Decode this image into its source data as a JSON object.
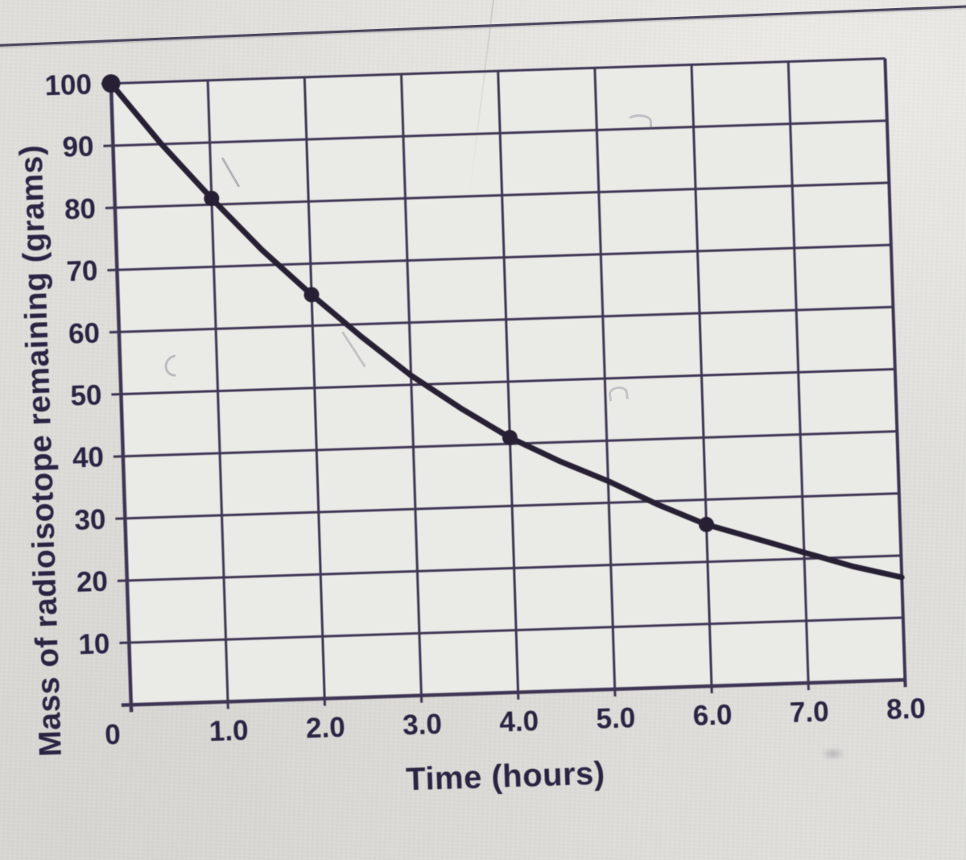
{
  "chart_data": {
    "type": "line",
    "title": "",
    "xlabel": "Time (hours)",
    "ylabel": "Mass of radioisotope remaining (grams)",
    "x_ticks": [
      "0",
      "1.0",
      "2.0",
      "3.0",
      "4.0",
      "5.0",
      "6.0",
      "7.0",
      "8.0"
    ],
    "y_ticks": [
      "100",
      "90",
      "80",
      "70",
      "60",
      "50",
      "40",
      "30",
      "20",
      "10"
    ],
    "xlim": [
      0,
      8
    ],
    "ylim": [
      0,
      100
    ],
    "x_grid_step": 1,
    "y_grid_step": 10,
    "grid": true,
    "legend": false,
    "series": [
      {
        "name": "mass-remaining",
        "x": [
          0,
          0.5,
          1,
          1.5,
          2,
          2.5,
          3,
          3.5,
          4,
          4.5,
          5,
          5.5,
          6,
          6.5,
          7,
          7.5,
          8
        ],
        "values": [
          100,
          90,
          81,
          72.5,
          65,
          58,
          51.5,
          46,
          41,
          37,
          33.5,
          29.5,
          26,
          23.5,
          21,
          18.5,
          16.5
        ]
      }
    ],
    "marked_points": [
      [
        0,
        100
      ],
      [
        1,
        81
      ],
      [
        2,
        65
      ],
      [
        4,
        41
      ],
      [
        6,
        26
      ]
    ],
    "colors": {
      "grid": "#3e3554",
      "curve": "#27203३4",
      "text": "#2a2443",
      "plot_bg": "#eaebe6",
      "page_bg": "#e0dfdb",
      "rule": "#4e4760"
    }
  }
}
